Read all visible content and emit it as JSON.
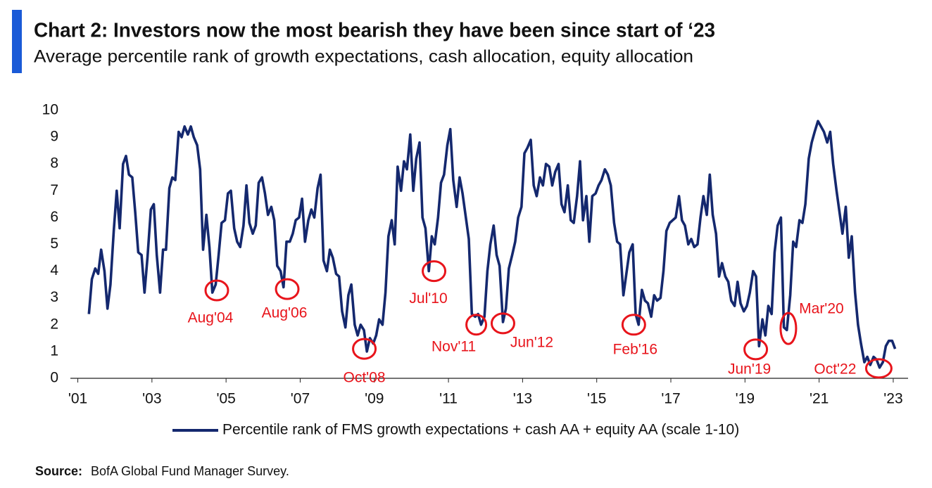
{
  "chart_data": {
    "type": "line",
    "title": "Chart 2: Investors now the most bearish they have been since start of ‘23",
    "subtitle": "Average percentile rank of growth expectations, cash allocation, equity allocation",
    "source_label": "Source:",
    "source": "BofA Global Fund Manager Survey.",
    "xlim": [
      2000.8,
      2023.4
    ],
    "ylim": [
      0,
      10
    ],
    "yticks": [
      0,
      1,
      2,
      3,
      4,
      5,
      6,
      7,
      8,
      9,
      10
    ],
    "xticks": [
      {
        "value": 2001,
        "label": "'01"
      },
      {
        "value": 2003,
        "label": "'03"
      },
      {
        "value": 2005,
        "label": "'05"
      },
      {
        "value": 2007,
        "label": "'07"
      },
      {
        "value": 2009,
        "label": "'09"
      },
      {
        "value": 2011,
        "label": "'11"
      },
      {
        "value": 2013,
        "label": "'13"
      },
      {
        "value": 2015,
        "label": "'15"
      },
      {
        "value": 2017,
        "label": "'17"
      },
      {
        "value": 2019,
        "label": "'19"
      },
      {
        "value": 2021,
        "label": "'21"
      },
      {
        "value": 2023,
        "label": "'23"
      }
    ],
    "grid": false,
    "legend": "bottom",
    "x": [
      2001.3,
      2001.38,
      2001.47,
      2001.55,
      2001.63,
      2001.72,
      2001.8,
      2001.88,
      2001.97,
      2002.05,
      2002.13,
      2002.22,
      2002.3,
      2002.38,
      2002.47,
      2002.55,
      2002.63,
      2002.72,
      2002.8,
      2002.88,
      2002.97,
      2003.05,
      2003.13,
      2003.22,
      2003.3,
      2003.38,
      2003.47,
      2003.55,
      2003.63,
      2003.72,
      2003.8,
      2003.88,
      2003.97,
      2004.05,
      2004.13,
      2004.22,
      2004.3,
      2004.38,
      2004.47,
      2004.55,
      2004.63,
      2004.72,
      2004.8,
      2004.88,
      2004.97,
      2005.05,
      2005.13,
      2005.22,
      2005.3,
      2005.38,
      2005.47,
      2005.55,
      2005.63,
      2005.72,
      2005.8,
      2005.88,
      2005.97,
      2006.05,
      2006.13,
      2006.22,
      2006.3,
      2006.38,
      2006.47,
      2006.55,
      2006.63,
      2006.72,
      2006.8,
      2006.88,
      2006.97,
      2007.05,
      2007.13,
      2007.22,
      2007.3,
      2007.38,
      2007.47,
      2007.55,
      2007.63,
      2007.72,
      2007.8,
      2007.88,
      2007.97,
      2008.05,
      2008.13,
      2008.22,
      2008.3,
      2008.38,
      2008.47,
      2008.55,
      2008.63,
      2008.72,
      2008.8,
      2008.88,
      2008.97,
      2009.05,
      2009.13,
      2009.22,
      2009.3,
      2009.38,
      2009.47,
      2009.55,
      2009.63,
      2009.72,
      2009.8,
      2009.88,
      2009.97,
      2010.05,
      2010.13,
      2010.22,
      2010.3,
      2010.38,
      2010.47,
      2010.55,
      2010.63,
      2010.72,
      2010.8,
      2010.88,
      2010.97,
      2011.05,
      2011.13,
      2011.22,
      2011.3,
      2011.38,
      2011.47,
      2011.55,
      2011.63,
      2011.72,
      2011.8,
      2011.88,
      2011.97,
      2012.05,
      2012.13,
      2012.22,
      2012.3,
      2012.38,
      2012.47,
      2012.55,
      2012.63,
      2012.72,
      2012.8,
      2012.88,
      2012.97,
      2013.05,
      2013.13,
      2013.22,
      2013.3,
      2013.38,
      2013.47,
      2013.55,
      2013.63,
      2013.72,
      2013.8,
      2013.88,
      2013.97,
      2014.05,
      2014.13,
      2014.22,
      2014.3,
      2014.38,
      2014.47,
      2014.55,
      2014.63,
      2014.72,
      2014.8,
      2014.88,
      2014.97,
      2015.05,
      2015.13,
      2015.22,
      2015.3,
      2015.38,
      2015.47,
      2015.55,
      2015.63,
      2015.72,
      2015.8,
      2015.88,
      2015.97,
      2016.05,
      2016.13,
      2016.22,
      2016.3,
      2016.38,
      2016.47,
      2016.55,
      2016.63,
      2016.72,
      2016.8,
      2016.88,
      2016.97,
      2017.05,
      2017.13,
      2017.22,
      2017.3,
      2017.38,
      2017.47,
      2017.55,
      2017.63,
      2017.72,
      2017.8,
      2017.88,
      2017.97,
      2018.05,
      2018.13,
      2018.22,
      2018.3,
      2018.38,
      2018.47,
      2018.55,
      2018.63,
      2018.72,
      2018.8,
      2018.88,
      2018.97,
      2019.05,
      2019.13,
      2019.22,
      2019.3,
      2019.38,
      2019.47,
      2019.55,
      2019.63,
      2019.72,
      2019.8,
      2019.88,
      2019.97,
      2020.05,
      2020.13,
      2020.22,
      2020.3,
      2020.38,
      2020.47,
      2020.55,
      2020.63,
      2020.72,
      2020.8,
      2020.88,
      2020.97,
      2021.05,
      2021.13,
      2021.22,
      2021.3,
      2021.38,
      2021.47,
      2021.55,
      2021.63,
      2021.72,
      2021.8,
      2021.88,
      2021.97,
      2022.05,
      2022.13,
      2022.22,
      2022.3,
      2022.38,
      2022.47,
      2022.55,
      2022.63,
      2022.72,
      2022.8,
      2022.88,
      2022.97,
      2023.05
    ],
    "series": [
      {
        "name": "Percentile rank of FMS growth expectations + cash AA + equity AA (scale 1-10)",
        "color": "#14286e",
        "values": [
          2.4,
          3.7,
          4.1,
          3.9,
          4.8,
          4.0,
          2.6,
          3.5,
          5.5,
          7.0,
          5.6,
          8.0,
          8.3,
          7.6,
          7.5,
          6.2,
          4.7,
          4.6,
          3.2,
          4.5,
          6.3,
          6.5,
          4.6,
          3.2,
          4.8,
          4.8,
          7.1,
          7.5,
          7.4,
          9.2,
          9.0,
          9.4,
          9.1,
          9.4,
          9.0,
          8.7,
          7.8,
          4.8,
          6.1,
          4.9,
          3.2,
          3.5,
          4.6,
          5.8,
          5.9,
          6.9,
          7.0,
          5.6,
          5.1,
          4.9,
          5.7,
          7.2,
          5.8,
          5.4,
          5.7,
          7.3,
          7.5,
          6.9,
          6.1,
          6.4,
          5.9,
          4.2,
          4.0,
          3.4,
          5.1,
          5.1,
          5.4,
          5.9,
          6.0,
          6.7,
          5.1,
          5.9,
          6.3,
          6.0,
          7.1,
          7.6,
          4.4,
          4.0,
          4.8,
          4.5,
          3.9,
          3.8,
          2.5,
          1.9,
          3.1,
          3.5,
          2.0,
          1.6,
          2.0,
          1.8,
          1.0,
          1.5,
          1.3,
          1.6,
          2.2,
          2.0,
          3.2,
          5.3,
          5.9,
          5.0,
          7.9,
          7.0,
          8.1,
          7.8,
          9.1,
          7.0,
          8.2,
          8.8,
          6.0,
          5.6,
          4.0,
          5.3,
          5.0,
          6.0,
          7.3,
          7.6,
          8.7,
          9.3,
          7.4,
          6.4,
          7.5,
          6.9,
          6.0,
          5.2,
          2.4,
          2.3,
          2.4,
          2.0,
          2.3,
          4.0,
          5.0,
          5.7,
          4.6,
          4.2,
          2.1,
          2.6,
          4.1,
          4.6,
          5.1,
          6.0,
          6.4,
          8.4,
          8.6,
          8.9,
          7.2,
          6.8,
          7.5,
          7.2,
          8.0,
          7.9,
          7.2,
          7.7,
          8.0,
          6.5,
          6.2,
          7.2,
          5.9,
          5.8,
          6.8,
          8.1,
          5.9,
          6.8,
          5.1,
          6.8,
          6.9,
          7.2,
          7.4,
          7.8,
          7.6,
          7.2,
          5.8,
          5.1,
          5.0,
          3.1,
          3.9,
          4.7,
          5.0,
          2.4,
          2.0,
          3.3,
          2.9,
          2.8,
          2.3,
          3.1,
          2.9,
          3.0,
          4.0,
          5.5,
          5.8,
          5.9,
          6.0,
          6.8,
          5.9,
          5.7,
          5.0,
          5.2,
          4.9,
          5.0,
          6.0,
          6.8,
          6.1,
          7.6,
          6.1,
          5.4,
          3.8,
          4.3,
          3.8,
          3.6,
          2.9,
          2.7,
          3.6,
          2.8,
          2.5,
          2.7,
          3.2,
          4.0,
          3.8,
          1.2,
          2.2,
          1.6,
          2.7,
          2.4,
          4.7,
          5.7,
          6.0,
          1.9,
          1.8,
          3.1,
          5.1,
          4.9,
          5.9,
          5.8,
          6.5,
          8.2,
          8.8,
          9.2,
          9.6,
          9.4,
          9.2,
          8.8,
          9.2,
          8.0,
          7.0,
          6.2,
          5.4,
          6.4,
          4.5,
          5.3,
          3.2,
          2.0,
          1.3,
          0.6,
          0.8,
          0.5,
          0.8,
          0.7,
          0.4,
          0.6,
          1.2,
          1.4,
          1.4,
          1.1
        ]
      }
    ],
    "annotations": [
      {
        "text": "Aug'04",
        "x": 2004.75,
        "y": 3.28,
        "color": "#e8141b"
      },
      {
        "text": "Aug'06",
        "x": 2006.65,
        "y": 3.33,
        "color": "#e8141b"
      },
      {
        "text": "Oct'08",
        "x": 2008.73,
        "y": 1.1,
        "color": "#e8141b"
      },
      {
        "text": "Jul'10",
        "x": 2010.61,
        "y": 4.0,
        "color": "#e8141b"
      },
      {
        "text": "Nov'11",
        "x": 2011.75,
        "y": 2.0,
        "color": "#e8141b"
      },
      {
        "text": "Jun'12",
        "x": 2012.47,
        "y": 2.05,
        "color": "#e8141b"
      },
      {
        "text": "Feb'16",
        "x": 2016.0,
        "y": 2.0,
        "color": "#e8141b"
      },
      {
        "text": "Jun'19",
        "x": 2019.29,
        "y": 1.08,
        "color": "#e8141b"
      },
      {
        "text": "Mar'20",
        "x": 2020.17,
        "y": 1.86,
        "color": "#e8141b"
      },
      {
        "text": "Oct'22",
        "x": 2022.61,
        "y": 0.37,
        "color": "#e8141b"
      }
    ]
  }
}
